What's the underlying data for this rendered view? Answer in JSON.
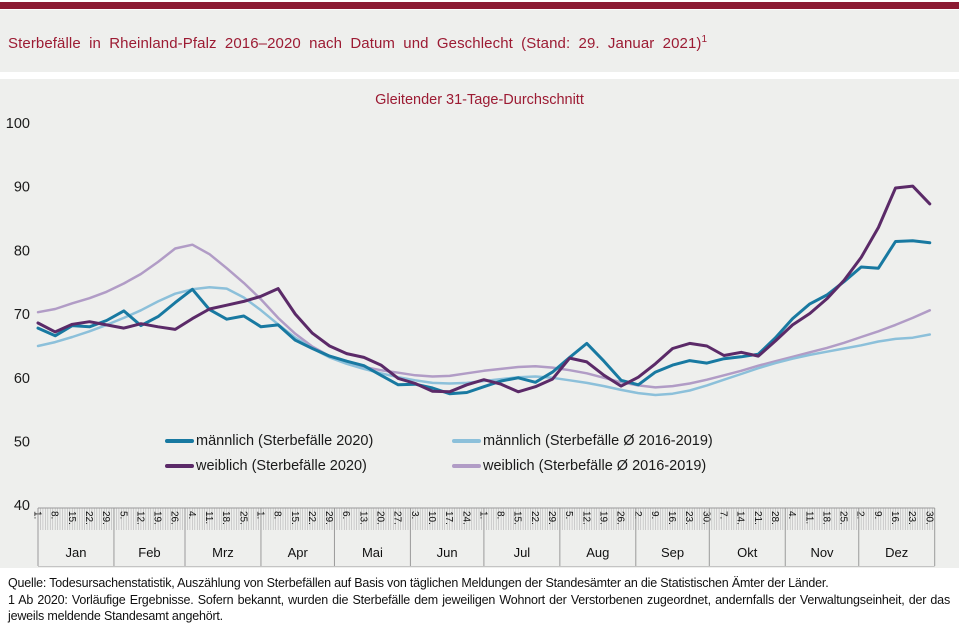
{
  "header": {
    "title": "Sterbefälle  in Rheinland-Pfalz  2016–2020  nach Datum  und Geschlecht  (Stand:  29. Januar  2021)",
    "title_superscript": "1"
  },
  "colors": {
    "accent_maroon_bar": "#8C1B33",
    "title_text": "#9C1B33",
    "band_background": "#EEEFED",
    "maennlich_2020": "#1879A1",
    "maennlich_avg": "#8CC0DA",
    "weiblich_2020": "#5B2A68",
    "weiblich_avg": "#B19CC6"
  },
  "footer": {
    "source_line": "Quelle: Todesursachenstatistik,  Auszählung von  Sterbefällen  auf Basis von  täglichen  Meldungen  der Standesämter an  die Statistischen Ämter der  Länder.",
    "footnote_line": "1 Ab 2020:  Vorläufige  Ergebnisse.  Sofern  bekannt,  wurden  die Sterbefälle  dem jeweiligen  Wohnort  der Verstorbenen  zugeordnet,  andernfalls  der Verwaltungseinheit,  der das jeweils  meldende  Standesamt  angehört."
  },
  "chart_data": {
    "type": "line",
    "title": "Gleitender 31-Tage-Durchschnitt",
    "ylabel": "",
    "xlabel": "",
    "ylim": [
      40,
      100
    ],
    "y_ticks": [
      100,
      90,
      80,
      70,
      60,
      50,
      40
    ],
    "grid": false,
    "legend_position": "inside-bottom-two-columns",
    "month_labels": [
      "Jan",
      "Feb",
      "Mrz",
      "Apr",
      "Mai",
      "Jun",
      "Jul",
      "Aug",
      "Sep",
      "Okt",
      "Nov",
      "Dez"
    ],
    "month_start_days": [
      1,
      32,
      61,
      92,
      122,
      153,
      183,
      214,
      245,
      275,
      306,
      336
    ],
    "axis_end_day": 367,
    "x_day_of_year": [
      1,
      8,
      15,
      22,
      29,
      36,
      43,
      50,
      57,
      64,
      71,
      78,
      85,
      92,
      99,
      106,
      113,
      120,
      127,
      134,
      141,
      148,
      155,
      162,
      169,
      176,
      183,
      190,
      197,
      204,
      211,
      218,
      225,
      232,
      239,
      246,
      253,
      260,
      267,
      274,
      281,
      288,
      295,
      302,
      309,
      316,
      323,
      330,
      337,
      344,
      351,
      358,
      365
    ],
    "x_tick_labels": [
      "1.",
      "8.",
      "15.",
      "22.",
      "29.",
      "5.",
      "12.",
      "19.",
      "26.",
      "4.",
      "11.",
      "18.",
      "25.",
      "1.",
      "8.",
      "15.",
      "22.",
      "29.",
      "6.",
      "13.",
      "20.",
      "27.",
      "3.",
      "10.",
      "17.",
      "24.",
      "1.",
      "8.",
      "15.",
      "22.",
      "29.",
      "5.",
      "12.",
      "19.",
      "26.",
      "2.",
      "9.",
      "16.",
      "23.",
      "30.",
      "7.",
      "14.",
      "21.",
      "28.",
      "4.",
      "11.",
      "18.",
      "25.",
      "2.",
      "9.",
      "16.",
      "23.",
      "30."
    ],
    "draw_order": [
      3,
      1,
      0,
      2
    ],
    "series": [
      {
        "name": "männlich (Sterbefälle 2020)",
        "color": "#1879A1",
        "width": 3,
        "values": [
          67.8,
          66.6,
          68.2,
          68.0,
          69.0,
          70.5,
          68.2,
          69.6,
          71.8,
          73.9,
          70.7,
          69.2,
          69.7,
          68.0,
          68.3,
          65.9,
          64.6,
          63.4,
          62.6,
          61.9,
          60.4,
          58.9,
          59.0,
          58.4,
          57.5,
          57.7,
          58.6,
          59.5,
          60.0,
          59.3,
          60.9,
          63.2,
          65.4,
          62.6,
          59.6,
          58.9,
          60.9,
          62.0,
          62.7,
          62.3,
          63.0,
          63.3,
          63.7,
          66.3,
          69.3,
          71.6,
          73.0,
          75.1,
          77.4,
          77.2,
          81.4,
          81.5,
          81.2
        ]
      },
      {
        "name": "männlich (Sterbefälle Ø 2016-2019)",
        "color": "#8CC0DA",
        "width": 2.5,
        "values": [
          65.0,
          65.6,
          66.4,
          67.3,
          68.3,
          69.4,
          70.6,
          72.0,
          73.2,
          73.9,
          74.2,
          74.0,
          72.6,
          70.6,
          68.4,
          66.3,
          64.6,
          63.2,
          62.2,
          61.4,
          60.7,
          60.1,
          59.6,
          59.2,
          59.1,
          59.2,
          59.5,
          59.8,
          60.1,
          60.2,
          60.0,
          59.6,
          59.2,
          58.7,
          58.1,
          57.6,
          57.3,
          57.5,
          58.0,
          58.8,
          59.7,
          60.6,
          61.5,
          62.3,
          63.0,
          63.6,
          64.1,
          64.6,
          65.1,
          65.7,
          66.1,
          66.3,
          66.8
        ]
      },
      {
        "name": "weiblich (Sterbefälle 2020)",
        "color": "#5B2A68",
        "width": 3,
        "values": [
          68.6,
          67.2,
          68.4,
          68.8,
          68.3,
          67.8,
          68.5,
          68.0,
          67.6,
          69.3,
          70.8,
          71.4,
          72.0,
          72.8,
          74.0,
          70.0,
          67.0,
          65.0,
          63.8,
          63.2,
          62.0,
          59.9,
          59.1,
          57.9,
          57.8,
          58.9,
          59.7,
          59.0,
          57.8,
          58.6,
          59.8,
          63.1,
          62.5,
          60.4,
          58.7,
          60.1,
          62.2,
          64.6,
          65.4,
          65.0,
          63.5,
          64.0,
          63.4,
          65.8,
          68.3,
          70.1,
          72.4,
          75.3,
          78.9,
          83.6,
          89.8,
          90.1,
          87.3
        ]
      },
      {
        "name": "weiblich (Sterbefälle Ø 2016-2019)",
        "color": "#B19CC6",
        "width": 2.5,
        "values": [
          70.3,
          70.8,
          71.7,
          72.5,
          73.5,
          74.8,
          76.3,
          78.2,
          80.3,
          80.9,
          79.4,
          77.2,
          74.9,
          72.3,
          69.4,
          66.9,
          64.9,
          63.4,
          62.4,
          61.7,
          61.2,
          60.8,
          60.4,
          60.2,
          60.3,
          60.7,
          61.1,
          61.4,
          61.7,
          61.8,
          61.6,
          61.2,
          60.7,
          60.0,
          59.3,
          58.8,
          58.5,
          58.7,
          59.1,
          59.7,
          60.4,
          61.1,
          61.9,
          62.6,
          63.3,
          64.0,
          64.7,
          65.5,
          66.4,
          67.3,
          68.3,
          69.4,
          70.6
        ]
      }
    ]
  }
}
